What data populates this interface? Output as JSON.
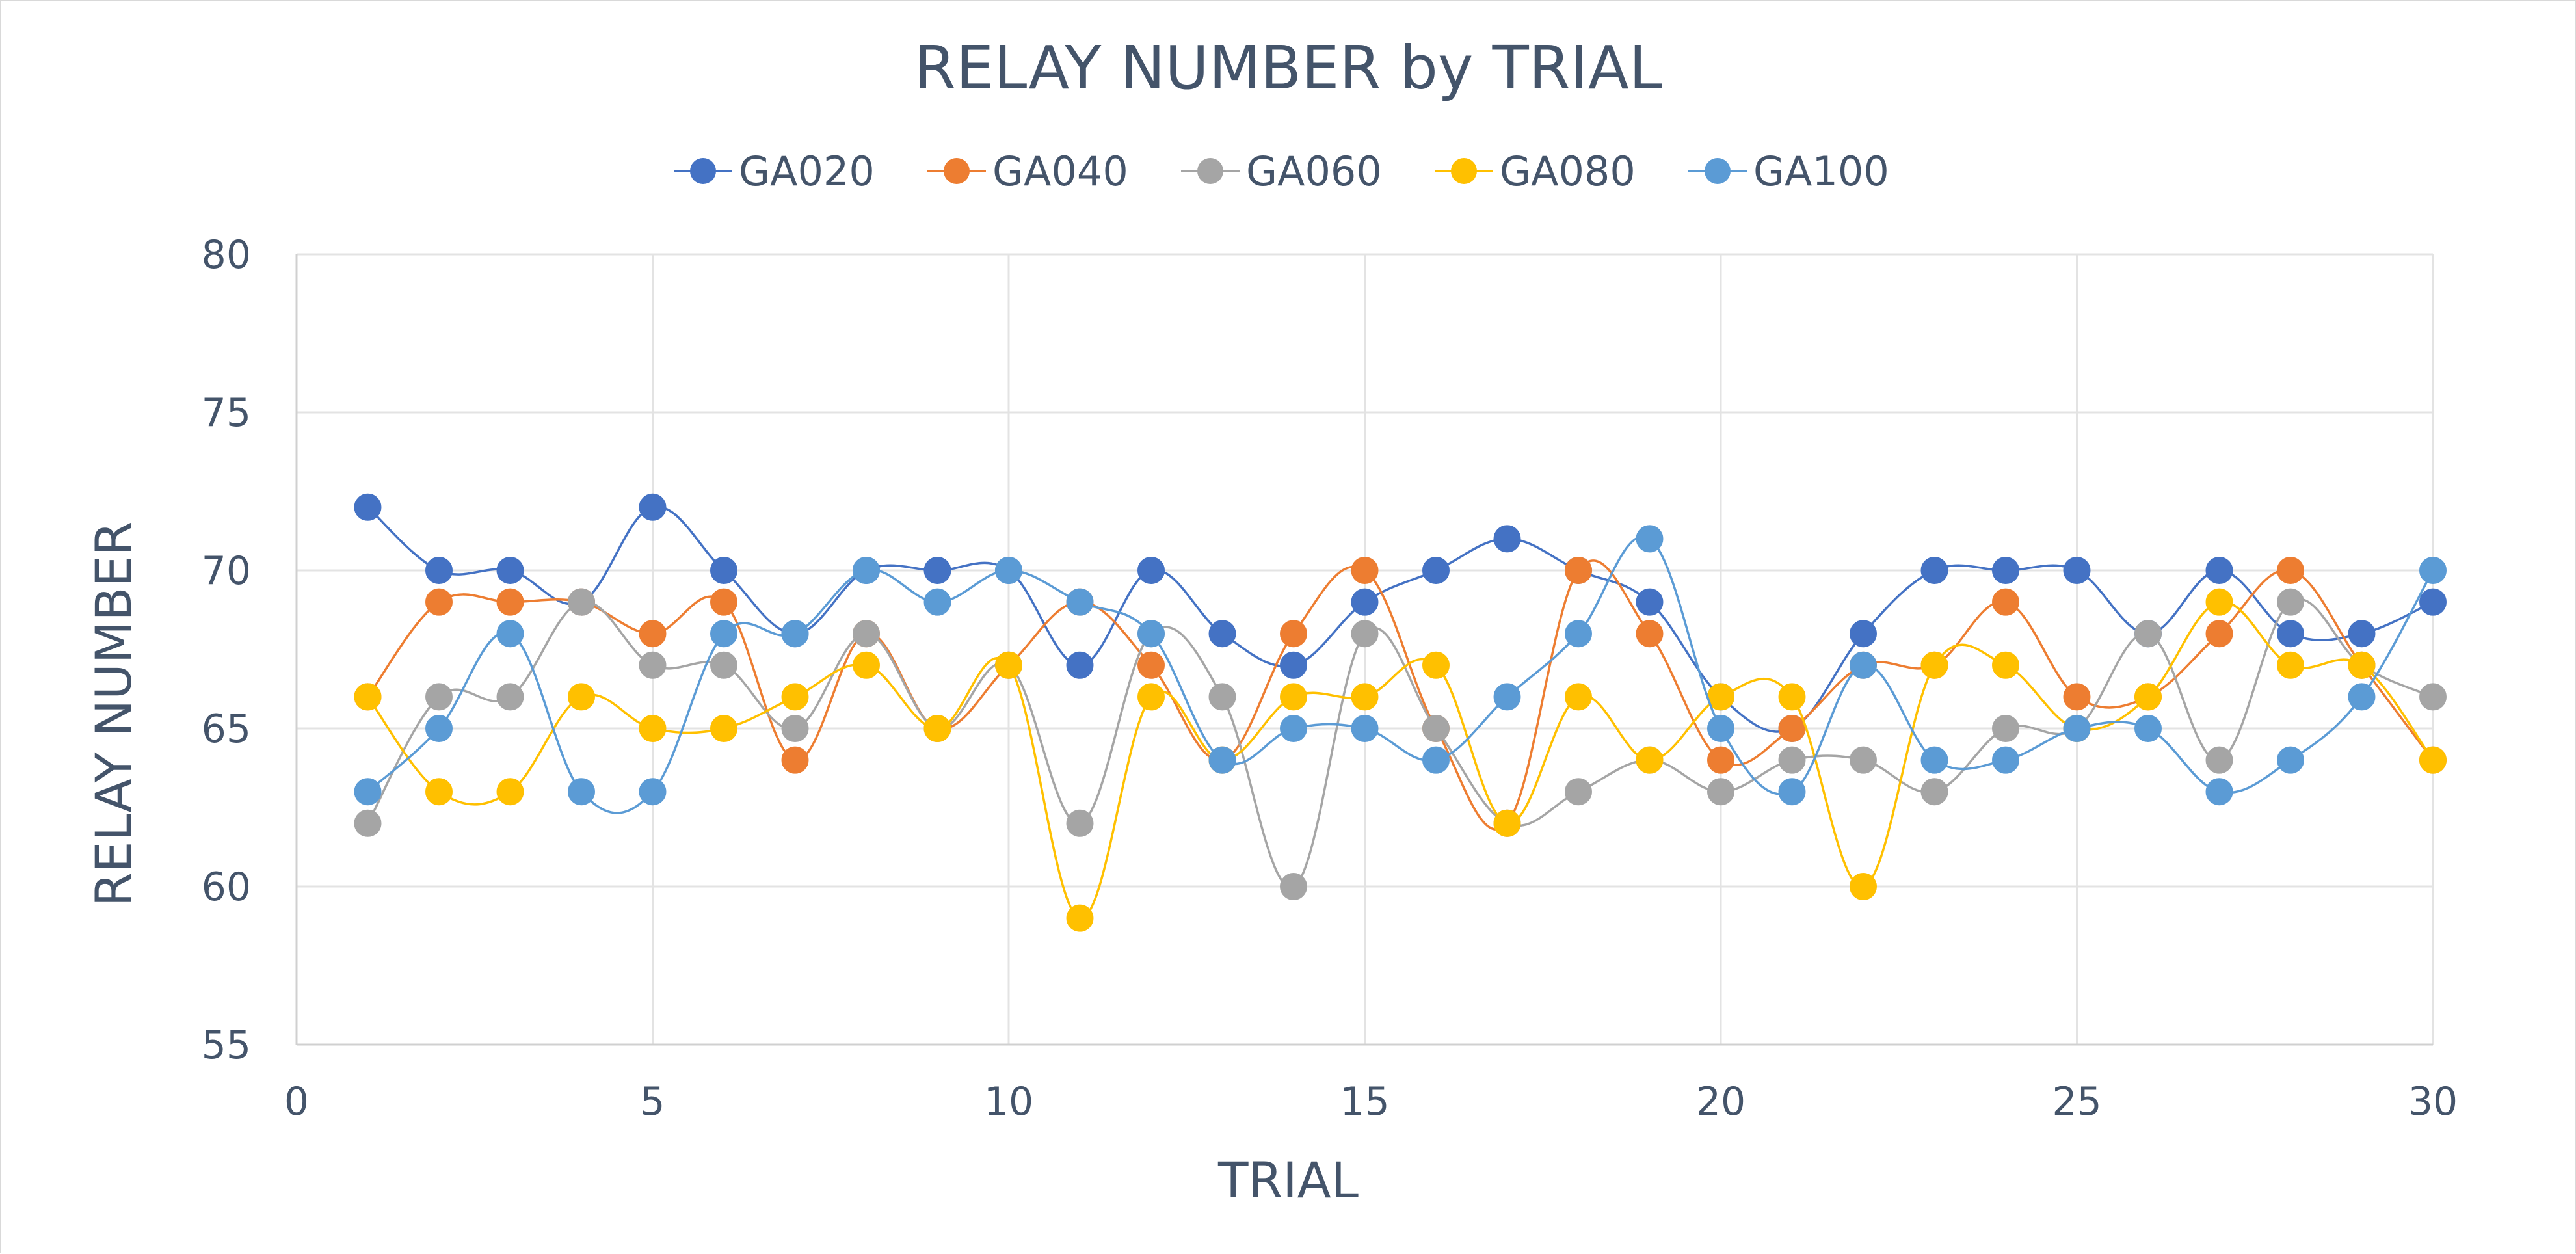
{
  "chart_data": {
    "type": "line",
    "title": "RELAY NUMBER by TRIAL",
    "xlabel": "TRIAL",
    "ylabel": "RELAY NUMBER",
    "xlim": [
      0,
      30
    ],
    "ylim": [
      55,
      80
    ],
    "xticks": [
      0,
      5,
      10,
      15,
      20,
      25,
      30
    ],
    "yticks": [
      55,
      60,
      65,
      70,
      75,
      80
    ],
    "grid": true,
    "legend_position": "top",
    "smooth": true,
    "x": [
      1,
      2,
      3,
      4,
      5,
      6,
      7,
      8,
      9,
      10,
      11,
      12,
      13,
      14,
      15,
      16,
      17,
      18,
      19,
      20,
      21,
      22,
      23,
      24,
      25,
      26,
      27,
      28,
      29,
      30
    ],
    "series": [
      {
        "name": "GA020",
        "color": "#4472c4",
        "values": [
          72,
          70,
          70,
          69,
          72,
          70,
          68,
          70,
          70,
          70,
          67,
          70,
          68,
          67,
          69,
          70,
          71,
          70,
          69,
          66,
          65,
          68,
          70,
          70,
          70,
          68,
          70,
          68,
          68,
          69
        ]
      },
      {
        "name": "GA040",
        "color": "#ed7d31",
        "values": [
          66,
          69,
          69,
          69,
          68,
          69,
          64,
          68,
          65,
          67,
          69,
          67,
          64,
          68,
          70,
          65,
          62,
          70,
          68,
          64,
          65,
          67,
          67,
          69,
          66,
          66,
          68,
          70,
          67,
          64
        ]
      },
      {
        "name": "GA060",
        "color": "#a5a5a5",
        "values": [
          62,
          66,
          66,
          69,
          67,
          67,
          65,
          68,
          65,
          67,
          62,
          68,
          66,
          60,
          68,
          65,
          62,
          63,
          64,
          63,
          64,
          64,
          63,
          65,
          65,
          68,
          64,
          69,
          67,
          66
        ]
      },
      {
        "name": "GA080",
        "color": "#ffc000",
        "values": [
          66,
          63,
          63,
          66,
          65,
          65,
          66,
          67,
          65,
          67,
          59,
          66,
          64,
          66,
          66,
          67,
          62,
          66,
          64,
          66,
          66,
          60,
          67,
          67,
          65,
          66,
          69,
          67,
          67,
          64
        ]
      },
      {
        "name": "GA100",
        "color": "#5b9bd5",
        "values": [
          63,
          65,
          68,
          63,
          63,
          68,
          68,
          70,
          69,
          70,
          69,
          68,
          64,
          65,
          65,
          64,
          66,
          68,
          71,
          65,
          63,
          67,
          64,
          64,
          65,
          65,
          63,
          64,
          66,
          70
        ]
      }
    ]
  }
}
